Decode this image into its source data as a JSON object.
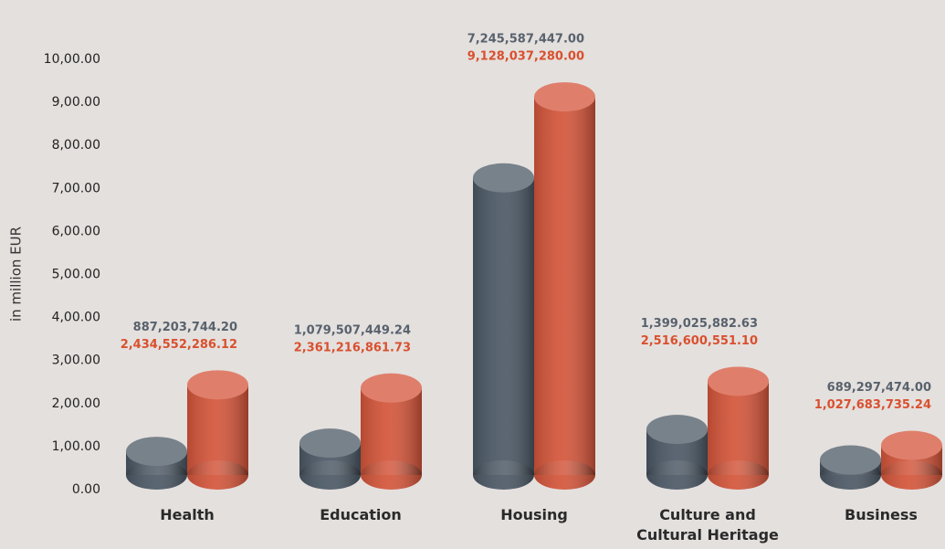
{
  "chart_data": {
    "type": "cylinder-bar",
    "y_label": "in million EUR",
    "categories": [
      "Health",
      "Education",
      "Housing",
      "Culture and Cultural Heritage",
      "Business"
    ],
    "series": [
      {
        "color": "#4b5865",
        "values": [
          887.2037442,
          1079.50744924,
          7245.587447,
          1399.02588263,
          689.297474
        ],
        "value_labels": [
          "887,203,744.20",
          "1,079,507,449.24",
          "7,245,587,447.00",
          "1,399,025,882.63",
          "689,297,474.00"
        ]
      },
      {
        "color": "#d4553a",
        "values": [
          2434.55228612,
          2361.21686173,
          9128.03728,
          2516.6005511,
          1027.68373524
        ],
        "value_labels": [
          "2,434,552,286.12",
          "2,361,216,861.73",
          "9,128,037,280.00",
          "2,516,600,551.10",
          "1,027,683,735.24"
        ]
      }
    ],
    "ylim": [
      0,
      10000
    ],
    "yticks": [
      {
        "value": 0,
        "label": "0.00"
      },
      {
        "value": 1000,
        "label": "1,00.00"
      },
      {
        "value": 2000,
        "label": "2,00.00"
      },
      {
        "value": 3000,
        "label": "3,00.00"
      },
      {
        "value": 4000,
        "label": "4,00.00"
      },
      {
        "value": 5000,
        "label": "5,00.00"
      },
      {
        "value": 6000,
        "label": "6,00.00"
      },
      {
        "value": 7000,
        "label": "7,00.00"
      },
      {
        "value": 8000,
        "label": "8,00.00"
      },
      {
        "value": 9000,
        "label": "9,00.00"
      },
      {
        "value": 10000,
        "label": "10,00.00"
      }
    ],
    "grid": false
  }
}
